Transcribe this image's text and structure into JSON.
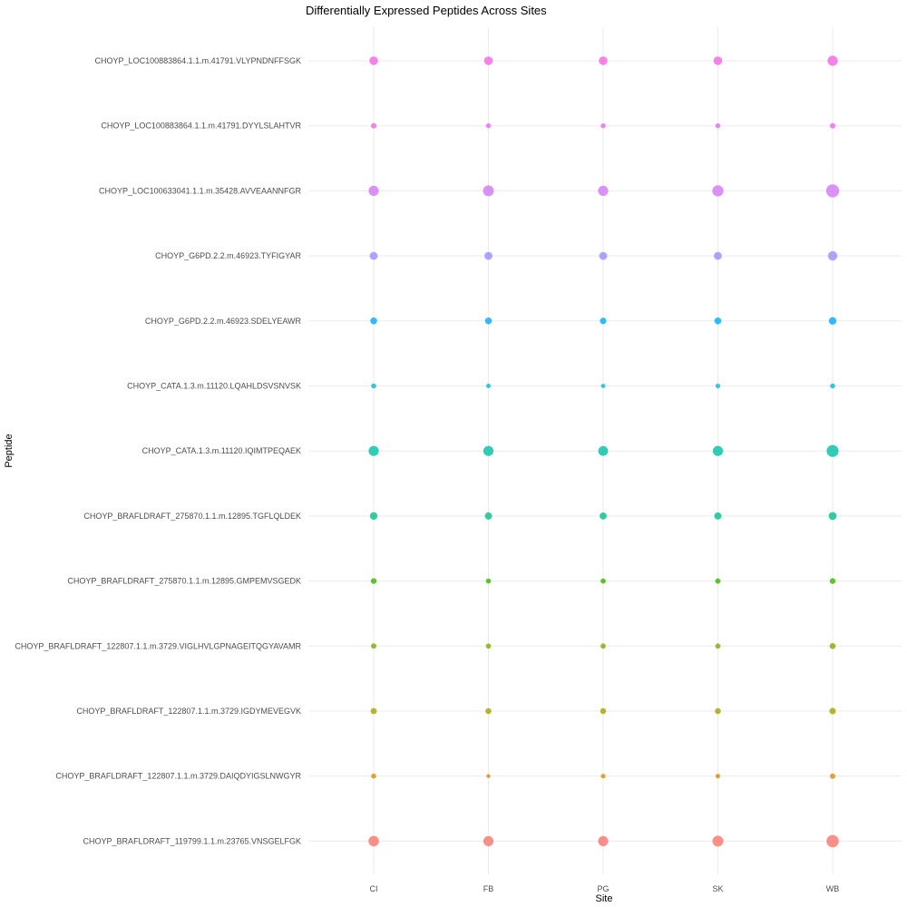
{
  "chart_data": {
    "type": "scatter",
    "title": "Differentially Expressed Peptides Across Sites",
    "xlabel": "Site",
    "ylabel": "Peptide",
    "grid": true,
    "legend": "none",
    "x": [
      "CI",
      "FB",
      "PG",
      "SK",
      "WB"
    ],
    "y": [
      "CHOYP_LOC100883864.1.1.m.41791.VLYPNDNFFSGK",
      "CHOYP_LOC100883864.1.1.m.41791.DYYLSLAHTVR",
      "CHOYP_LOC100633041.1.1.m.35428.AVVEAANNFGR",
      "CHOYP_G6PD.2.2.m.46923.TYFIGYAR",
      "CHOYP_G6PD.2.2.m.46923.SDELYEAWR",
      "CHOYP_CATA.1.3.m.11120.LQAHLDSVSNVSK",
      "CHOYP_CATA.1.3.m.11120.IQIMTPEQAEK",
      "CHOYP_BRAFLDRAFT_275870.1.1.m.12895.TGFLQLDEK",
      "CHOYP_BRAFLDRAFT_275870.1.1.m.12895.GMPEMVSGEDK",
      "CHOYP_BRAFLDRAFT_122807.1.1.m.3729.VIGLHVLGPNAGEITQGYAVAMR",
      "CHOYP_BRAFLDRAFT_122807.1.1.m.3729.IGDYMEVEGVK",
      "CHOYP_BRAFLDRAFT_122807.1.1.m.3729.DAIQDYIGSLNWGYR",
      "CHOYP_BRAFLDRAFT_119799.1.1.m.23765.VNSGELFGK"
    ],
    "colors": [
      "#f564e3",
      "#e76bf3",
      "#d277f5",
      "#9590ff",
      "#00a9ff",
      "#00bcd8",
      "#00bfa5",
      "#00c08b",
      "#39b600",
      "#7cae00",
      "#a3a500",
      "#d89000",
      "#f8766d"
    ],
    "series": [
      {
        "name": "CHOYP_LOC100883864.1.1.m.41791.VLYPNDNFFSGK",
        "values": [
          4.8,
          4.8,
          4.8,
          4.8,
          5.6
        ]
      },
      {
        "name": "CHOYP_LOC100883864.1.1.m.41791.DYYLSLAHTVR",
        "values": [
          3.1,
          2.8,
          2.8,
          2.8,
          3.1
        ]
      },
      {
        "name": "CHOYP_LOC100633041.1.1.m.35428.AVVEAANNFGR",
        "values": [
          5.6,
          6.0,
          5.6,
          6.2,
          7.2
        ]
      },
      {
        "name": "CHOYP_G6PD.2.2.m.46923.TYFIGYAR",
        "values": [
          4.4,
          4.4,
          4.4,
          4.4,
          5.2
        ]
      },
      {
        "name": "CHOYP_G6PD.2.2.m.46923.SDELYEAWR",
        "values": [
          3.8,
          3.8,
          3.6,
          3.8,
          4.2
        ]
      },
      {
        "name": "CHOYP_CATA.1.3.m.11120.LQAHLDSVSNVSK",
        "values": [
          2.8,
          2.5,
          2.4,
          2.6,
          2.8
        ]
      },
      {
        "name": "CHOYP_CATA.1.3.m.11120.IQIMTPEQAEK",
        "values": [
          5.6,
          5.6,
          5.4,
          5.6,
          6.6
        ]
      },
      {
        "name": "CHOYP_BRAFLDRAFT_275870.1.1.m.12895.TGFLQLDEK",
        "values": [
          4.2,
          4.0,
          3.9,
          4.0,
          4.4
        ]
      },
      {
        "name": "CHOYP_BRAFLDRAFT_275870.1.1.m.12895.GMPEMVSGEDK",
        "values": [
          3.2,
          2.8,
          2.9,
          3.0,
          3.2
        ]
      },
      {
        "name": "CHOYP_BRAFLDRAFT_122807.1.1.m.3729.VIGLHVLGPNAGEITQGYAVAMR",
        "values": [
          3.0,
          2.9,
          2.9,
          2.9,
          3.3
        ]
      },
      {
        "name": "CHOYP_BRAFLDRAFT_122807.1.1.m.3729.IGDYMEVEGVK",
        "values": [
          3.4,
          3.3,
          3.3,
          3.3,
          3.6
        ]
      },
      {
        "name": "CHOYP_BRAFLDRAFT_122807.1.1.m.3729.DAIQDYIGSLNWGYR",
        "values": [
          2.8,
          2.2,
          2.6,
          2.6,
          3.0
        ]
      },
      {
        "name": "CHOYP_BRAFLDRAFT_119799.1.1.m.23765.VNSGELFGK",
        "values": [
          5.8,
          5.6,
          5.6,
          6.0,
          6.8
        ]
      }
    ]
  }
}
